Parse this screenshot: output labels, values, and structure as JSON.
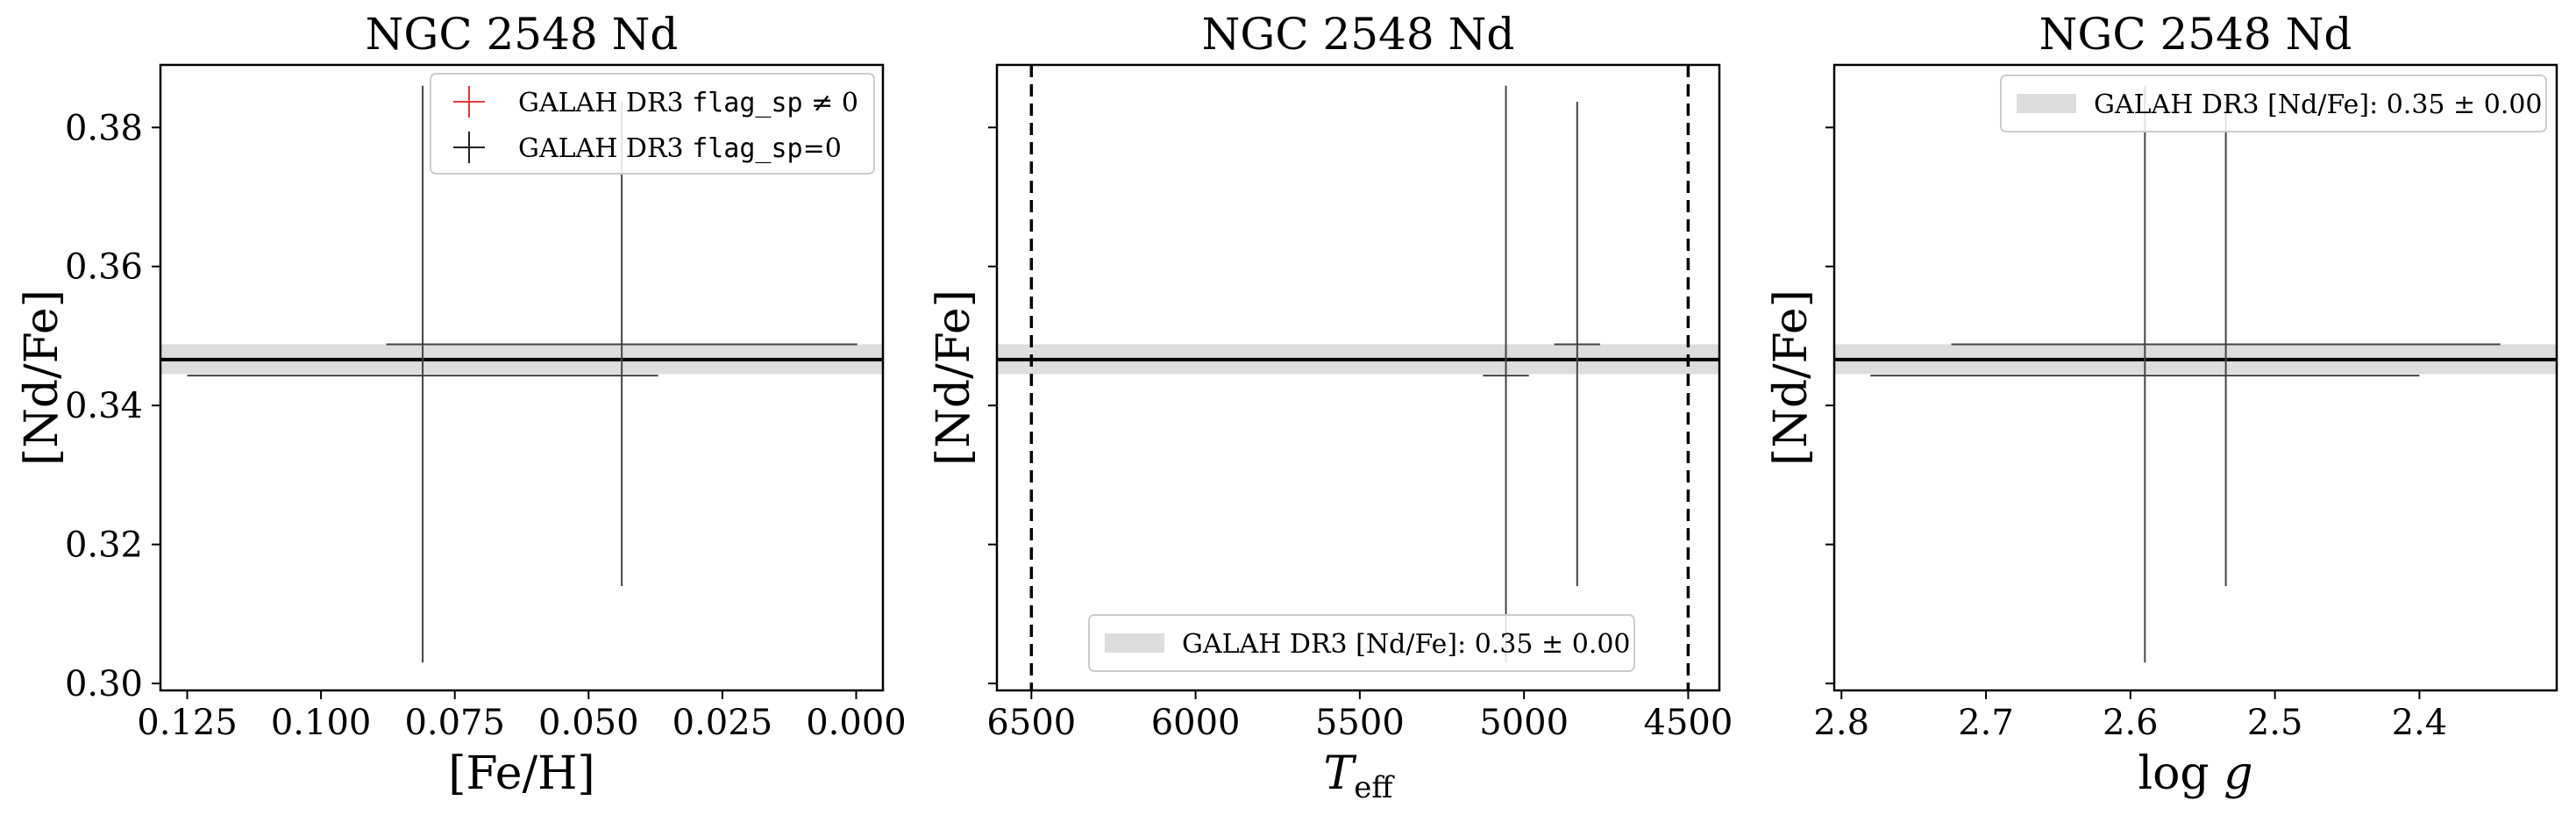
{
  "chart_data": [
    {
      "type": "scatter",
      "title": "NGC 2548 Nd",
      "xlabel": "[Fe/H]",
      "ylabel": "[Nd/Fe]",
      "xlim": [
        0.13,
        -0.005
      ],
      "ylim": [
        0.299,
        0.389
      ],
      "xticks": [
        0.125,
        0.1,
        0.075,
        0.05,
        0.025,
        0.0
      ],
      "xtick_labels": [
        "0.125",
        "0.100",
        "0.075",
        "0.050",
        "0.025",
        "0.000"
      ],
      "yticks": [
        0.3,
        0.32,
        0.34,
        0.36,
        0.38
      ],
      "ytick_labels": [
        "0.30",
        "0.32",
        "0.34",
        "0.36",
        "0.38"
      ],
      "ytick_labels_visible": true,
      "band": {
        "center": 0.3466,
        "low": 0.3445,
        "high": 0.3488
      },
      "points": [
        {
          "x": 0.081,
          "xerr": [
            0.044,
            0.044
          ],
          "y": 0.3443,
          "yerr": [
            0.0413,
            0.0417
          ],
          "flag_sp": 0
        },
        {
          "x": 0.0438,
          "xerr": [
            0.044,
            0.044
          ],
          "y": 0.3488,
          "yerr": [
            0.0348,
            0.0349
          ],
          "flag_sp": 0
        }
      ],
      "vlines": [],
      "legend": {
        "placement": "upper right",
        "entries": [
          {
            "kind": "marker",
            "color": "#e8383d",
            "pre": "GALAH DR3 ",
            "mono": "flag_sp",
            "post": " ≠ 0"
          },
          {
            "kind": "marker",
            "color": "#222222",
            "pre": "GALAH DR3 ",
            "mono": "flag_sp",
            "post": "=0"
          }
        ]
      }
    },
    {
      "type": "scatter",
      "title": "NGC 2548 Nd",
      "xlabel": "Teff",
      "ylabel": "[Nd/Fe]",
      "xlim": [
        6605,
        4405
      ],
      "ylim": [
        0.299,
        0.389
      ],
      "xticks": [
        6500,
        6000,
        5500,
        5000,
        4500
      ],
      "xtick_labels": [
        "6500",
        "6000",
        "5500",
        "5000",
        "4500"
      ],
      "yticks": [
        0.3,
        0.32,
        0.34,
        0.36,
        0.38
      ],
      "ytick_labels": [
        "0.30",
        "0.32",
        "0.34",
        "0.36",
        "0.38"
      ],
      "ytick_labels_visible": false,
      "band": {
        "center": 0.3466,
        "low": 0.3445,
        "high": 0.3488
      },
      "points": [
        {
          "x": 5055,
          "xerr": [
            70,
            70
          ],
          "y": 0.3443,
          "yerr": [
            0.0413,
            0.0417
          ],
          "flag_sp": 0
        },
        {
          "x": 4838,
          "xerr": [
            70,
            70
          ],
          "y": 0.3488,
          "yerr": [
            0.0348,
            0.0349
          ],
          "flag_sp": 0
        }
      ],
      "vlines": [
        6500,
        4500
      ],
      "legend": {
        "placement": "lower center",
        "entries": [
          {
            "kind": "patch",
            "color": "#dddddd",
            "pre": "GALAH DR3 [Nd/Fe]: 0.35 ± 0.00",
            "mono": "",
            "post": ""
          }
        ]
      }
    },
    {
      "type": "scatter",
      "title": "NGC 2548 Nd",
      "xlabel": "log g",
      "ylabel": "[Nd/Fe]",
      "xlim": [
        2.805,
        2.305
      ],
      "ylim": [
        0.299,
        0.389
      ],
      "xticks": [
        2.8,
        2.7,
        2.6,
        2.5,
        2.4
      ],
      "xtick_labels": [
        "2.8",
        "2.7",
        "2.6",
        "2.5",
        "2.4"
      ],
      "yticks": [
        0.3,
        0.32,
        0.34,
        0.36,
        0.38
      ],
      "ytick_labels": [
        "0.30",
        "0.32",
        "0.34",
        "0.36",
        "0.38"
      ],
      "ytick_labels_visible": false,
      "band": {
        "center": 0.3466,
        "low": 0.3445,
        "high": 0.3488
      },
      "points": [
        {
          "x": 2.59,
          "xerr": [
            0.19,
            0.19
          ],
          "y": 0.3443,
          "yerr": [
            0.0413,
            0.0417
          ],
          "flag_sp": 0
        },
        {
          "x": 2.534,
          "xerr": [
            0.19,
            0.19
          ],
          "y": 0.3488,
          "yerr": [
            0.0348,
            0.0349
          ],
          "flag_sp": 0
        }
      ],
      "vlines": [],
      "legend": {
        "placement": "upper right",
        "entries": [
          {
            "kind": "patch",
            "color": "#dddddd",
            "pre": "GALAH DR3 [Nd/Fe]: 0.35 ± 0.00",
            "mono": "",
            "post": ""
          }
        ]
      }
    }
  ]
}
